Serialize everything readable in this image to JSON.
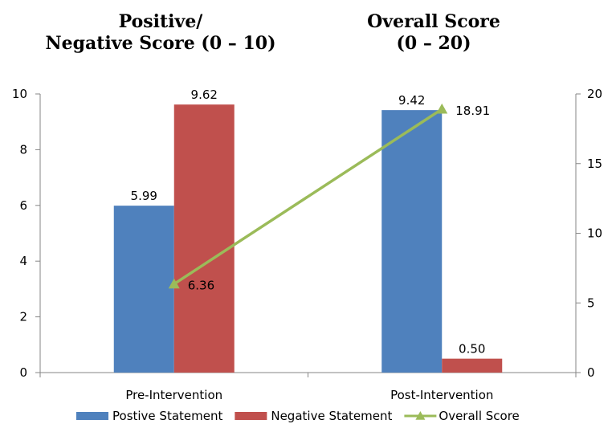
{
  "titles": {
    "left_line1": "Positive/",
    "left_line2": "Negative Score (0 – 10)",
    "right_line1": "Overall Score",
    "right_line2": "(0 – 20)"
  },
  "chart_data": {
    "type": "bar",
    "categories": [
      "Pre-Intervention",
      "Post-Intervention"
    ],
    "series": [
      {
        "name": "Postive Statement",
        "type": "bar",
        "axis": "left",
        "color": "#4F81BD",
        "values": [
          5.99,
          9.42
        ],
        "labels": [
          "5.99",
          "9.42"
        ]
      },
      {
        "name": "Negative Statement",
        "type": "bar",
        "axis": "left",
        "color": "#C0504D",
        "values": [
          9.62,
          0.5
        ],
        "labels": [
          "9.62",
          "0.50"
        ]
      },
      {
        "name": "Overall Score",
        "type": "line",
        "marker": "triangle",
        "axis": "right",
        "color": "#9BBB59",
        "values": [
          6.36,
          18.91
        ],
        "labels": [
          "6.36",
          "18.91"
        ]
      }
    ],
    "y_left": {
      "range": [
        0,
        10
      ],
      "ticks": [
        "0",
        "2",
        "4",
        "6",
        "8",
        "10"
      ]
    },
    "y_right": {
      "range": [
        0,
        20
      ],
      "ticks": [
        "0",
        "5",
        "10",
        "15",
        "20"
      ]
    },
    "grid": false,
    "legend_position": "bottom"
  }
}
